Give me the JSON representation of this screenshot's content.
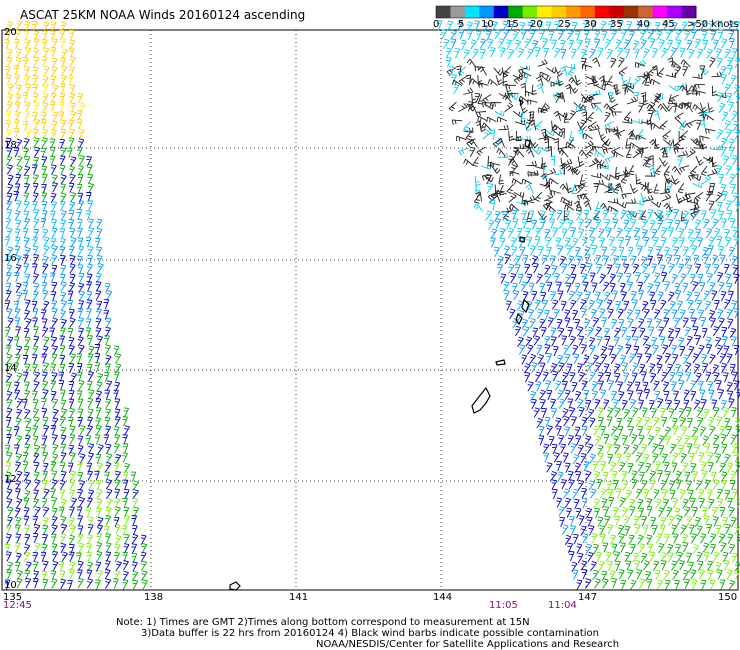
{
  "title": "ASCAT 25KM NOAA Winds 20160124 ascending",
  "legend": {
    "labels": [
      "0",
      "5",
      "10",
      "15",
      "20",
      "25",
      "30",
      "35",
      "40",
      "45",
      ">50 knots"
    ],
    "colors": [
      "#444444",
      "#9a9a9a",
      "#00e5ff",
      "#0099ff",
      "#0000cc",
      "#00aa00",
      "#77ee00",
      "#ffee00",
      "#ffcc00",
      "#ff9900",
      "#ff6600",
      "#ff0000",
      "#cc0000",
      "#993300",
      "#cc6633",
      "#ff00ff",
      "#aa00ff",
      "#6600aa"
    ]
  },
  "latitudes": [
    "20",
    "18",
    "16",
    "14",
    "12",
    "10"
  ],
  "longitudes": [
    "135",
    "138",
    "141",
    "144",
    "147",
    "150"
  ],
  "times": [
    "12:45",
    "11:05",
    "11:04"
  ],
  "notes": [
    "Note: 1) Times are GMT 2)Times along bottom correspond to measurement at 15N",
    "3)Data buffer is 22 hrs from 20160124 4) Black wind barbs indicate possible contamination",
    "NOAA/NESDIS/Center for Satellite Applications and Research"
  ]
}
